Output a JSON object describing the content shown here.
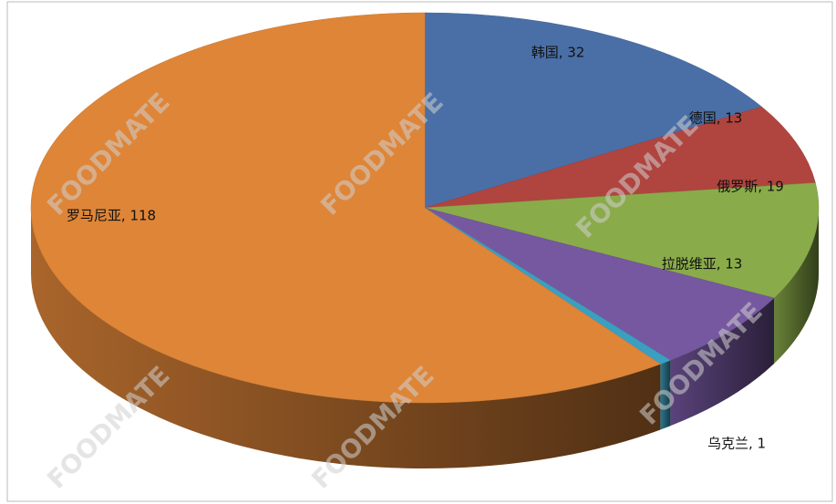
{
  "chart_data": {
    "type": "pie3d",
    "values": [
      32,
      13,
      19,
      13,
      1,
      118
    ],
    "value_labels": [
      "韩国, 32",
      "德国, 13",
      "俄罗斯, 19",
      "拉脱维亚, 13",
      "乌克兰, 1",
      "罗马尼亚, 118"
    ],
    "colors": [
      "#4a6fa6",
      "#b0443f",
      "#8aab4a",
      "#7658a0",
      "#3b9fc0",
      "#de8538"
    ],
    "watermark": "FOODMATE"
  }
}
